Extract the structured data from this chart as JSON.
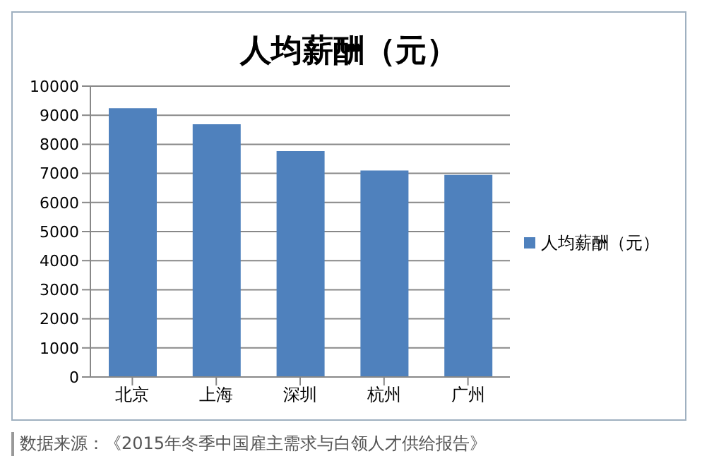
{
  "chart_data": {
    "type": "bar",
    "title": "人均薪酬（元）",
    "categories": [
      "北京",
      "上海",
      "深圳",
      "杭州",
      "广州"
    ],
    "series": [
      {
        "name": "人均薪酬（元）",
        "color": "#4f81bd",
        "values": [
          9240,
          8690,
          7770,
          7100,
          6950
        ]
      }
    ],
    "ylim": [
      0,
      10000
    ],
    "yticks": [
      0,
      1000,
      2000,
      3000,
      4000,
      5000,
      6000,
      7000,
      8000,
      9000,
      10000
    ],
    "grid": "y",
    "legend": "right",
    "annotations": [
      "数据来源：《2015年冬季中国雇主需求与白领人才供给报告》"
    ]
  }
}
